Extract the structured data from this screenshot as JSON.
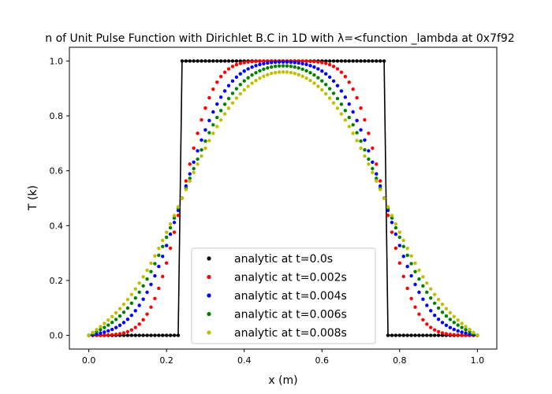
{
  "chart_data": {
    "type": "scatter",
    "title": "n of Unit Pulse Function with Dirichlet B.C in 1D with λ=<function _lambda at 0x7f92",
    "xlabel": "x (m)",
    "ylabel": "T (k)",
    "xlim": [
      -0.05,
      1.05
    ],
    "ylim": [
      -0.05,
      1.05
    ],
    "xticks": [
      "0.0",
      "0.2",
      "0.4",
      "0.6",
      "0.8",
      "1.0"
    ],
    "yticks": [
      "0.0",
      "0.2",
      "0.4",
      "0.6",
      "0.8",
      "1.0"
    ],
    "grid": false,
    "legend_position": "lower center",
    "n_points": 101,
    "x_range": [
      0.0,
      1.0
    ],
    "pulse": {
      "low": 0.24,
      "high": 0.76,
      "value": 1.0
    },
    "line_series": "analytic at t=0.0s",
    "series": [
      {
        "name": "analytic at t=0.0s",
        "t": 0.0,
        "color": "#000000"
      },
      {
        "name": "analytic at t=0.002s",
        "t": 0.002,
        "color": "#ff0000"
      },
      {
        "name": "analytic at t=0.004s",
        "t": 0.004,
        "color": "#0000ff"
      },
      {
        "name": "analytic at t=0.006s",
        "t": 0.006,
        "color": "#008000"
      },
      {
        "name": "analytic at t=0.008s",
        "t": 0.008,
        "color": "#bfbf00"
      }
    ]
  }
}
